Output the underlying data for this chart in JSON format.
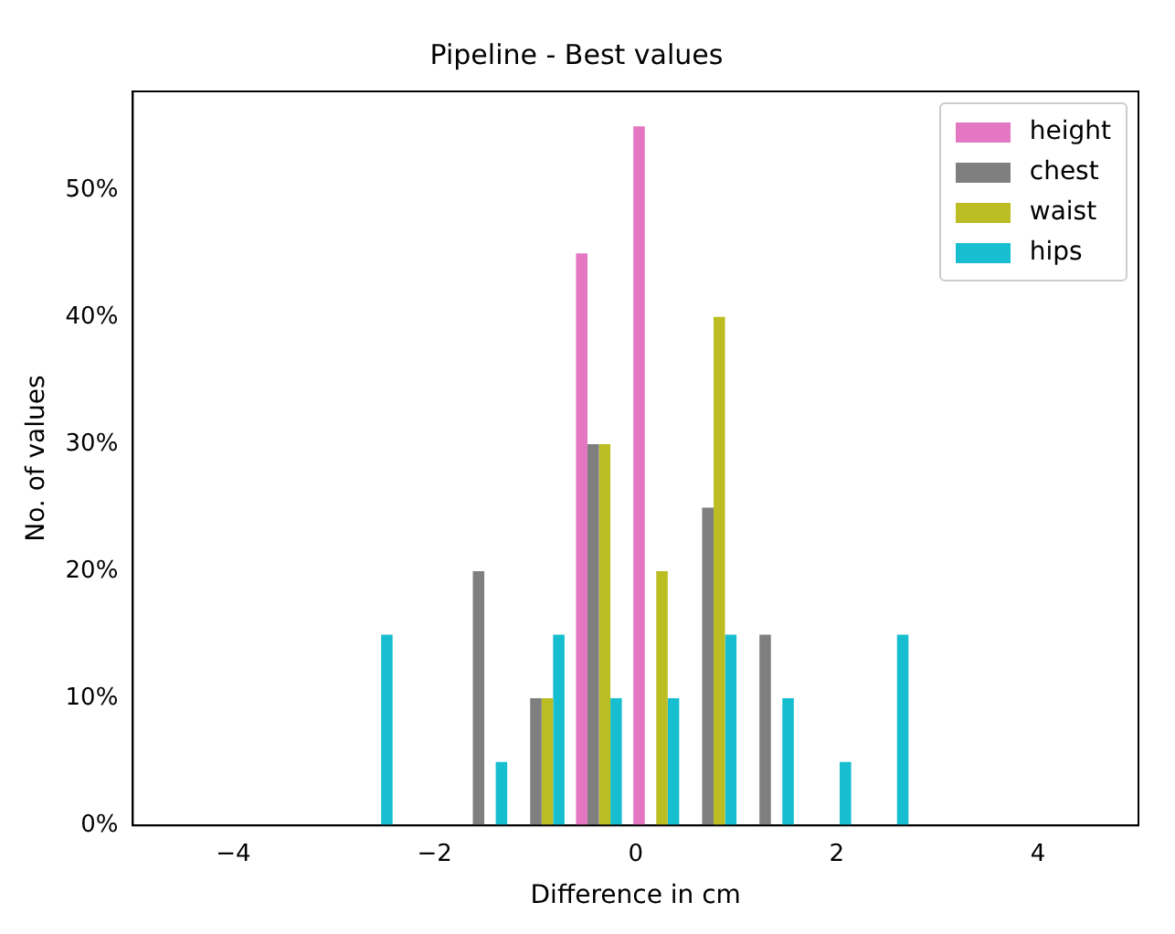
{
  "chart_data": {
    "type": "histogram",
    "title": "Pipeline - Best values",
    "xlabel": "Difference in cm",
    "ylabel": "No. of values",
    "bins": [
      -2.93,
      -2.36,
      -1.79,
      -1.22,
      -0.65,
      -0.08,
      0.49,
      1.06,
      1.63,
      2.2,
      2.77
    ],
    "series": [
      {
        "name": "height",
        "color": "#e377c2",
        "values": [
          0,
          0,
          0,
          0,
          45,
          55,
          0,
          0,
          0,
          0
        ]
      },
      {
        "name": "chest",
        "color": "#7f7f7f",
        "values": [
          0,
          0,
          20,
          10,
          30,
          0,
          25,
          15,
          0,
          0
        ]
      },
      {
        "name": "waist",
        "color": "#bcbd22",
        "values": [
          0,
          0,
          0,
          10,
          30,
          20,
          40,
          0,
          0,
          0
        ]
      },
      {
        "name": "hips",
        "color": "#17becf",
        "values": [
          15,
          0,
          5,
          15,
          10,
          10,
          15,
          10,
          5,
          15
        ]
      }
    ],
    "xlim": [
      -5,
      5
    ],
    "xticks": [
      {
        "value": -4,
        "label": "−4"
      },
      {
        "value": -2,
        "label": "−2"
      },
      0,
      2,
      4
    ],
    "ylim": [
      0,
      57.75
    ],
    "yticks": [
      {
        "value": 0,
        "label": "0%"
      },
      {
        "value": 10,
        "label": "10%"
      },
      {
        "value": 20,
        "label": "20%"
      },
      {
        "value": 30,
        "label": "30%"
      },
      {
        "value": 40,
        "label": "40%"
      },
      {
        "value": 50,
        "label": "50%"
      }
    ],
    "grid": false,
    "legend": "top right"
  }
}
